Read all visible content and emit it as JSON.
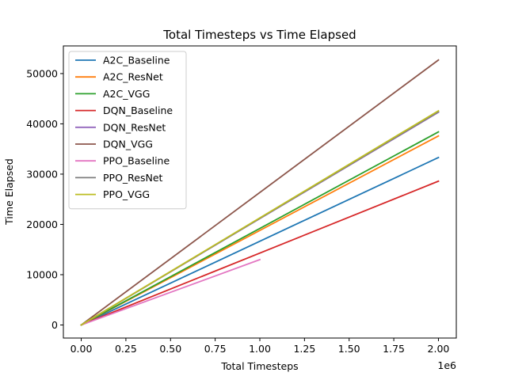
{
  "chart_data": {
    "type": "line",
    "title": "Total Timesteps vs Time Elapsed",
    "xlabel": "Total Timesteps",
    "ylabel": "Time Elapsed",
    "x_offset_label": "1e6",
    "xlim": [
      -0.1,
      2.1
    ],
    "ylim": [
      -2600,
      55500
    ],
    "xticks": [
      0.0,
      0.25,
      0.5,
      0.75,
      1.0,
      1.25,
      1.5,
      1.75,
      2.0
    ],
    "xtick_labels": [
      "0.00",
      "0.25",
      "0.50",
      "0.75",
      "1.00",
      "1.25",
      "1.50",
      "1.75",
      "2.00"
    ],
    "yticks": [
      0,
      10000,
      20000,
      30000,
      40000,
      50000
    ],
    "ytick_labels": [
      "0",
      "10000",
      "20000",
      "30000",
      "40000",
      "50000"
    ],
    "grid": false,
    "legend_position": "top-left",
    "series": [
      {
        "name": "A2C_Baseline",
        "color": "#1f77b4",
        "x": [
          0,
          2.0
        ],
        "y": [
          0,
          33300
        ]
      },
      {
        "name": "A2C_ResNet",
        "color": "#ff7f0e",
        "x": [
          0,
          2.0
        ],
        "y": [
          0,
          37600
        ]
      },
      {
        "name": "A2C_VGG",
        "color": "#2ca02c",
        "x": [
          0,
          2.0
        ],
        "y": [
          0,
          38400
        ]
      },
      {
        "name": "DQN_Baseline",
        "color": "#d62728",
        "x": [
          0,
          2.0
        ],
        "y": [
          0,
          28600
        ]
      },
      {
        "name": "DQN_ResNet",
        "color": "#9467bd",
        "x": [
          0,
          2.0
        ],
        "y": [
          0,
          42300
        ]
      },
      {
        "name": "DQN_VGG",
        "color": "#8c564b",
        "x": [
          0,
          2.0
        ],
        "y": [
          0,
          52700
        ]
      },
      {
        "name": "PPO_Baseline",
        "color": "#e377c2",
        "x": [
          0,
          1.0
        ],
        "y": [
          0,
          13000
        ]
      },
      {
        "name": "PPO_ResNet",
        "color": "#7f7f7f",
        "x": [
          0,
          2.0
        ],
        "y": [
          0,
          42400
        ]
      },
      {
        "name": "PPO_VGG",
        "color": "#bcbd22",
        "x": [
          0,
          2.0
        ],
        "y": [
          0,
          42600
        ]
      }
    ]
  }
}
